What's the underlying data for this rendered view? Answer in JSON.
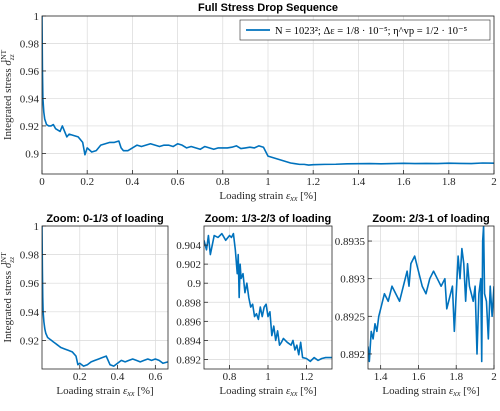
{
  "figure_title": "Full Stress Drop Sequence",
  "colors": {
    "line": "#0072BD",
    "grid": "#d9d9d9",
    "axis": "#262626"
  },
  "chart_data": [
    {
      "type": "line",
      "title": "Full Stress Drop Sequence",
      "xlabel": "Loading strain ε_xx [%]",
      "ylabel": "Integrated stress σ_zz^INT",
      "xlim": [
        0,
        2
      ],
      "ylim": [
        0.885,
        1.0
      ],
      "xticks": [
        0,
        0.2,
        0.4,
        0.6,
        0.8,
        1,
        1.2,
        1.4,
        1.6,
        1.8,
        2
      ],
      "xtick_labels": [
        "0",
        "0.2",
        "0.4",
        "0.6",
        "0.8",
        "1",
        "1.2",
        "1.4",
        "1.6",
        "1.8",
        "2"
      ],
      "yticks": [
        0.9,
        0.92,
        0.94,
        0.96,
        0.98,
        1
      ],
      "ytick_labels": [
        "0.9",
        "0.92",
        "0.94",
        "0.96",
        "0.98",
        "1"
      ],
      "grid": true,
      "legend": {
        "position": "top-right",
        "entries": [
          "N = 1023²; Δε = 1/8 · 10⁻⁵; η^vp = 1/2 · 10⁻⁵"
        ]
      },
      "series": [
        {
          "name": "N = 1023²; Δε = 1/8 · 10⁻⁵; η^vp = 1/2 · 10⁻⁵",
          "x": [
            0,
            0.002,
            0.004,
            0.008,
            0.012,
            0.02,
            0.03,
            0.04,
            0.05,
            0.06,
            0.07,
            0.08,
            0.09,
            0.1,
            0.11,
            0.12,
            0.14,
            0.16,
            0.18,
            0.19,
            0.2,
            0.22,
            0.24,
            0.25,
            0.26,
            0.28,
            0.3,
            0.32,
            0.34,
            0.35,
            0.36,
            0.38,
            0.4,
            0.42,
            0.44,
            0.46,
            0.48,
            0.5,
            0.52,
            0.54,
            0.56,
            0.58,
            0.6,
            0.62,
            0.64,
            0.66,
            0.68,
            0.7,
            0.72,
            0.74,
            0.76,
            0.78,
            0.8,
            0.82,
            0.84,
            0.86,
            0.88,
            0.9,
            0.92,
            0.94,
            0.96,
            0.98,
            1.0,
            1.02,
            1.04,
            1.06,
            1.08,
            1.1,
            1.12,
            1.14,
            1.16,
            1.18,
            1.2,
            1.25,
            1.3,
            1.35,
            1.4,
            1.45,
            1.5,
            1.55,
            1.6,
            1.65,
            1.7,
            1.75,
            1.8,
            1.85,
            1.9,
            1.95,
            2.0
          ],
          "y": [
            1.0,
            0.96,
            0.94,
            0.93,
            0.925,
            0.921,
            0.92,
            0.92,
            0.921,
            0.918,
            0.917,
            0.916,
            0.92,
            0.916,
            0.912,
            0.914,
            0.913,
            0.912,
            0.908,
            0.899,
            0.904,
            0.901,
            0.902,
            0.904,
            0.906,
            0.907,
            0.908,
            0.908,
            0.909,
            0.904,
            0.902,
            0.902,
            0.904,
            0.906,
            0.905,
            0.906,
            0.907,
            0.906,
            0.905,
            0.906,
            0.906,
            0.905,
            0.907,
            0.906,
            0.904,
            0.905,
            0.904,
            0.903,
            0.905,
            0.904,
            0.903,
            0.904,
            0.904,
            0.904,
            0.9045,
            0.9055,
            0.9035,
            0.904,
            0.9045,
            0.904,
            0.9055,
            0.9045,
            0.898,
            0.897,
            0.896,
            0.895,
            0.894,
            0.893,
            0.8925,
            0.892,
            0.892,
            0.8915,
            0.8918,
            0.892,
            0.8921,
            0.8924,
            0.8925,
            0.8926,
            0.8924,
            0.8926,
            0.8928,
            0.8926,
            0.8927,
            0.8926,
            0.8929,
            0.8927,
            0.8926,
            0.893,
            0.8929
          ]
        }
      ]
    },
    {
      "type": "line",
      "title": "Zoom: 0-1/3 of loading",
      "xlabel": "Loading strain ε_xx [%]",
      "ylabel": "Integrated stress σ_zz^INT",
      "xlim": [
        0,
        0.667
      ],
      "ylim": [
        0.9,
        1.0
      ],
      "xticks": [
        0.2,
        0.4,
        0.6
      ],
      "xtick_labels": [
        "0.2",
        "0.4",
        "0.6"
      ],
      "yticks": [
        0.92,
        0.94,
        0.96,
        0.98,
        1
      ],
      "ytick_labels": [
        "0.92",
        "0.94",
        "0.96",
        "0.98",
        "1"
      ],
      "grid": true,
      "series": [
        {
          "x": [
            0,
            0.002,
            0.004,
            0.006,
            0.01,
            0.015,
            0.02,
            0.03,
            0.04,
            0.05,
            0.06,
            0.07,
            0.08,
            0.09,
            0.1,
            0.12,
            0.14,
            0.16,
            0.18,
            0.19,
            0.2,
            0.22,
            0.24,
            0.26,
            0.28,
            0.3,
            0.32,
            0.34,
            0.36,
            0.38,
            0.4,
            0.42,
            0.44,
            0.46,
            0.48,
            0.5,
            0.52,
            0.54,
            0.56,
            0.58,
            0.6,
            0.62,
            0.64,
            0.667
          ],
          "y": [
            1.0,
            0.97,
            0.95,
            0.94,
            0.933,
            0.928,
            0.925,
            0.922,
            0.921,
            0.92,
            0.919,
            0.918,
            0.917,
            0.916,
            0.915,
            0.914,
            0.913,
            0.912,
            0.909,
            0.903,
            0.904,
            0.902,
            0.903,
            0.905,
            0.906,
            0.907,
            0.908,
            0.909,
            0.903,
            0.902,
            0.904,
            0.906,
            0.905,
            0.906,
            0.907,
            0.906,
            0.905,
            0.906,
            0.907,
            0.906,
            0.907,
            0.906,
            0.904,
            0.905
          ]
        }
      ]
    },
    {
      "type": "line",
      "title": "Zoom: 1/3-2/3 of loading",
      "xlabel": "Loading strain ε_xx [%]",
      "ylabel": "",
      "xlim": [
        0.667,
        1.333
      ],
      "ylim": [
        0.891,
        0.906
      ],
      "xticks": [
        0.8,
        1,
        1.2
      ],
      "xtick_labels": [
        "0.8",
        "1",
        "1.2"
      ],
      "yticks": [
        0.892,
        0.894,
        0.896,
        0.898,
        0.9,
        0.902,
        0.904
      ],
      "ytick_labels": [
        "0.892",
        "0.894",
        "0.896",
        "0.898",
        "0.9",
        "0.902",
        "0.904"
      ],
      "grid": true,
      "series": [
        {
          "x": [
            0.667,
            0.68,
            0.69,
            0.7,
            0.71,
            0.72,
            0.74,
            0.76,
            0.78,
            0.8,
            0.81,
            0.82,
            0.83,
            0.84,
            0.845,
            0.85,
            0.855,
            0.86,
            0.87,
            0.88,
            0.89,
            0.9,
            0.91,
            0.92,
            0.93,
            0.94,
            0.95,
            0.96,
            0.97,
            0.98,
            0.99,
            1.0,
            1.01,
            1.02,
            1.03,
            1.04,
            1.05,
            1.06,
            1.07,
            1.08,
            1.1,
            1.12,
            1.13,
            1.14,
            1.15,
            1.16,
            1.17,
            1.18,
            1.2,
            1.22,
            1.24,
            1.26,
            1.28,
            1.3,
            1.333
          ],
          "y": [
            0.9045,
            0.9035,
            0.905,
            0.903,
            0.904,
            0.905,
            0.9048,
            0.9052,
            0.9045,
            0.905,
            0.9048,
            0.9052,
            0.9035,
            0.901,
            0.903,
            0.8985,
            0.902,
            0.9005,
            0.901,
            0.899,
            0.9,
            0.8985,
            0.8975,
            0.8978,
            0.8965,
            0.8968,
            0.8962,
            0.8975,
            0.8965,
            0.8975,
            0.8978,
            0.8965,
            0.897,
            0.8945,
            0.8955,
            0.894,
            0.895,
            0.8935,
            0.8938,
            0.8942,
            0.8938,
            0.8935,
            0.894,
            0.893,
            0.8935,
            0.8925,
            0.8938,
            0.8922,
            0.8921,
            0.8918,
            0.8922,
            0.8919,
            0.8921,
            0.8922,
            0.8922
          ]
        }
      ]
    },
    {
      "type": "line",
      "title": "Zoom: 2/3-1 of loading",
      "xlabel": "Loading strain ε_xx [%]",
      "ylabel": "",
      "xlim": [
        1.333,
        2.0
      ],
      "ylim": [
        0.8918,
        0.8937
      ],
      "xticks": [
        1.4,
        1.6,
        1.8,
        2
      ],
      "xtick_labels": [
        "1.4",
        "1.6",
        "1.8",
        "2"
      ],
      "yticks": [
        0.892,
        0.8925,
        0.893,
        0.8935
      ],
      "ytick_labels": [
        "0.892",
        "0.8925",
        "0.893",
        "0.8935"
      ],
      "grid": true,
      "series": [
        {
          "x": [
            1.333,
            1.34,
            1.35,
            1.36,
            1.37,
            1.38,
            1.39,
            1.4,
            1.42,
            1.44,
            1.46,
            1.48,
            1.5,
            1.52,
            1.54,
            1.55,
            1.56,
            1.58,
            1.6,
            1.62,
            1.64,
            1.66,
            1.68,
            1.7,
            1.72,
            1.74,
            1.75,
            1.76,
            1.78,
            1.79,
            1.8,
            1.81,
            1.82,
            1.83,
            1.84,
            1.85,
            1.86,
            1.87,
            1.88,
            1.89,
            1.9,
            1.91,
            1.92,
            1.93,
            1.935,
            1.94,
            1.945,
            1.95,
            1.96,
            1.97,
            1.98,
            1.99,
            2.0
          ],
          "y": [
            0.8921,
            0.8919,
            0.8923,
            0.8922,
            0.8924,
            0.8923,
            0.8925,
            0.8926,
            0.8928,
            0.8927,
            0.8929,
            0.8928,
            0.8927,
            0.8929,
            0.8931,
            0.8929,
            0.8932,
            0.8933,
            0.8931,
            0.8929,
            0.8928,
            0.893,
            0.8931,
            0.893,
            0.8929,
            0.893,
            0.8926,
            0.8927,
            0.8929,
            0.8923,
            0.8928,
            0.8933,
            0.893,
            0.8934,
            0.8932,
            0.8927,
            0.8932,
            0.8929,
            0.8928,
            0.8927,
            0.8929,
            0.892,
            0.8928,
            0.893,
            0.8919,
            0.8935,
            0.8937,
            0.8928,
            0.8927,
            0.8922,
            0.8929,
            0.8925,
            0.8929
          ]
        }
      ]
    }
  ]
}
